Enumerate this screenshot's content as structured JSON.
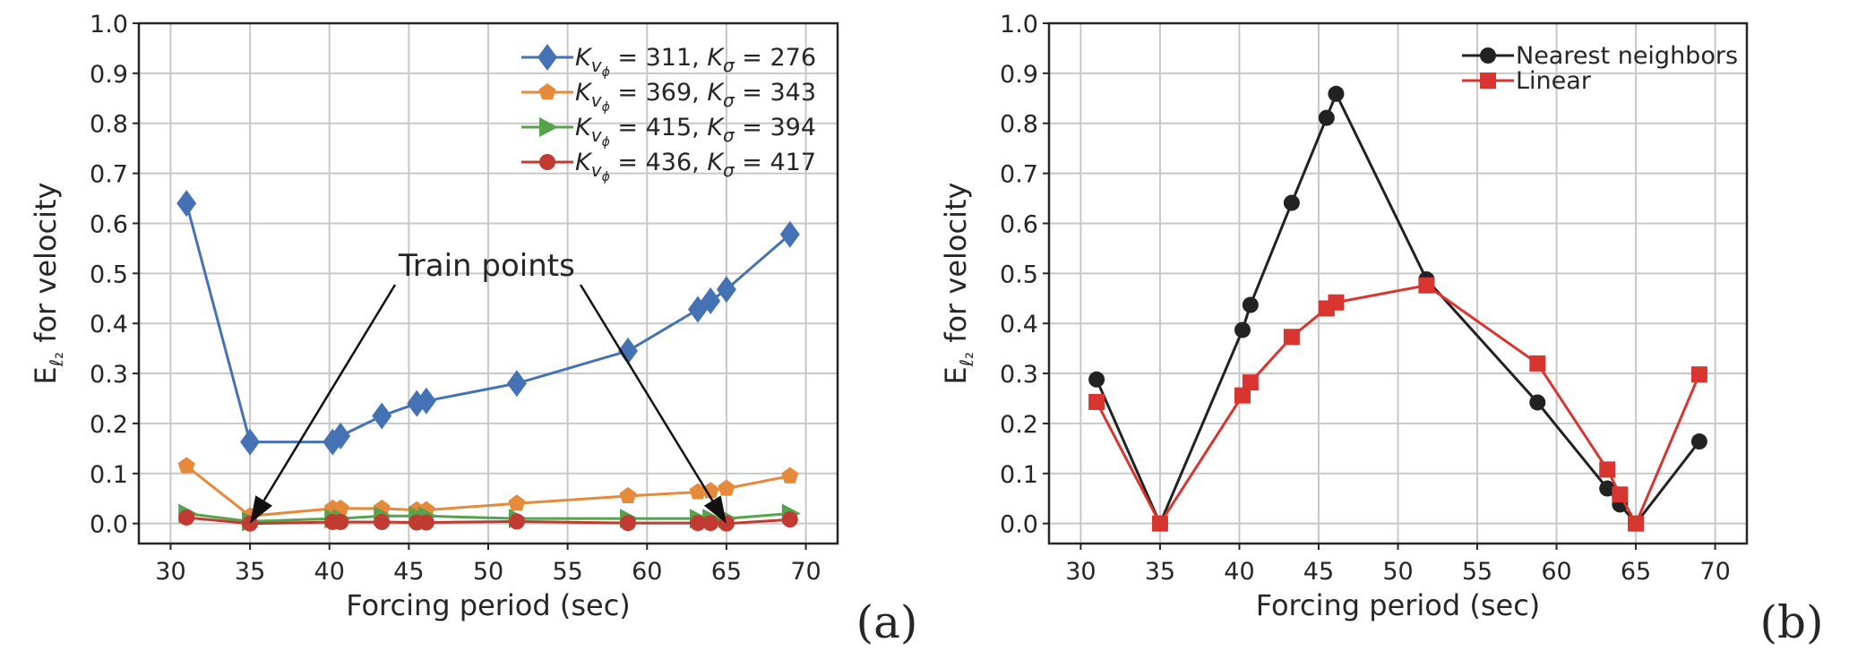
{
  "chart_data": [
    {
      "type": "line",
      "panel_label": "(a)",
      "xlabel": "Forcing period (sec)",
      "ylabel_main": "E",
      "ylabel_sub": "ℓ₂",
      "ylabel_rest": " for velocity",
      "xlim": [
        28,
        72
      ],
      "ylim": [
        -0.04,
        1.0
      ],
      "xticks": [
        30,
        35,
        40,
        45,
        50,
        55,
        60,
        65,
        70
      ],
      "yticks": [
        0.0,
        0.1,
        0.2,
        0.3,
        0.4,
        0.5,
        0.6,
        0.7,
        0.8,
        0.9,
        1.0
      ],
      "grid": true,
      "legend_position": "top-right",
      "x": [
        31,
        35,
        40.2,
        40.7,
        43.3,
        45.5,
        46.1,
        51.8,
        58.8,
        63.2,
        64,
        65,
        69
      ],
      "series": [
        {
          "name": "K_vφ = 311, K_σ = 276",
          "kv": "311",
          "ks": "276",
          "color": "#4472b4",
          "marker": "diamond",
          "values": [
            0.64,
            0.163,
            0.163,
            0.175,
            0.215,
            0.24,
            0.245,
            0.28,
            0.345,
            0.428,
            0.445,
            0.468,
            0.578
          ]
        },
        {
          "name": "K_vφ = 369, K_σ = 343",
          "kv": "369",
          "ks": "343",
          "color": "#e5893a",
          "marker": "pentagon",
          "values": [
            0.115,
            0.015,
            0.03,
            0.03,
            0.03,
            0.027,
            0.027,
            0.04,
            0.055,
            0.063,
            0.065,
            0.07,
            0.095
          ]
        },
        {
          "name": "K_vφ = 415, K_σ = 394",
          "kv": "415",
          "ks": "394",
          "color": "#56a24d",
          "marker": "triangle-right",
          "values": [
            0.02,
            0.004,
            0.01,
            0.01,
            0.015,
            0.015,
            0.015,
            0.01,
            0.01,
            0.01,
            0.01,
            0.01,
            0.02
          ]
        },
        {
          "name": "K_vφ = 436, K_σ = 417",
          "kv": "436",
          "ks": "417",
          "color": "#c23b33",
          "marker": "circle",
          "values": [
            0.012,
            0.0,
            0.003,
            0.003,
            0.003,
            0.002,
            0.002,
            0.004,
            0.001,
            0.001,
            0.001,
            0.0,
            0.008
          ]
        }
      ],
      "annotation": {
        "text": "Train points",
        "targets": [
          [
            35,
            0.0
          ],
          [
            65,
            0.0
          ]
        ]
      }
    },
    {
      "type": "line",
      "panel_label": "(b)",
      "xlabel": "Forcing period (sec)",
      "ylabel_main": "E",
      "ylabel_sub": "ℓ₂",
      "ylabel_rest": " for velocity",
      "xlim": [
        28,
        72
      ],
      "ylim": [
        -0.04,
        1.0
      ],
      "xticks": [
        30,
        35,
        40,
        45,
        50,
        55,
        60,
        65,
        70
      ],
      "yticks": [
        0.0,
        0.1,
        0.2,
        0.3,
        0.4,
        0.5,
        0.6,
        0.7,
        0.8,
        0.9,
        1.0
      ],
      "grid": true,
      "legend_position": "top-right",
      "x": [
        31,
        35,
        40.2,
        40.7,
        43.3,
        45.5,
        46.1,
        51.8,
        58.8,
        63.2,
        64,
        65,
        69
      ],
      "series": [
        {
          "name": "Nearest neighbors",
          "color": "#222222",
          "marker": "circle",
          "values": [
            0.288,
            0.0,
            0.387,
            0.437,
            0.641,
            0.811,
            0.859,
            0.488,
            0.242,
            0.07,
            0.038,
            0.0,
            0.164
          ]
        },
        {
          "name": "Linear",
          "color": "#d93530",
          "marker": "square",
          "values": [
            0.243,
            0.0,
            0.256,
            0.282,
            0.373,
            0.43,
            0.442,
            0.476,
            0.32,
            0.108,
            0.058,
            0.0,
            0.298
          ]
        }
      ]
    }
  ]
}
